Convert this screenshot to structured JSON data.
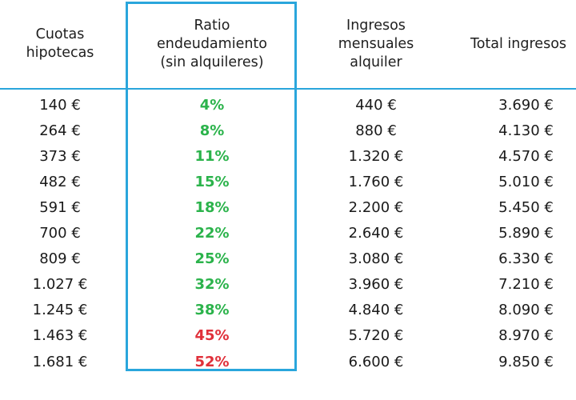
{
  "headers": {
    "cuotas": "Cuotas\nhipotecas",
    "ratio": "Ratio\nendeudamiento\n(sin alquileres)",
    "ingresos_alquiler": "Ingresos\nmensuales\nalquiler",
    "total": "Total ingresos"
  },
  "rows": [
    {
      "cuota": "140 €",
      "ratio": "4%",
      "status": "ok",
      "alquiler": "440 €",
      "total": "3.690 €"
    },
    {
      "cuota": "264 €",
      "ratio": "8%",
      "status": "ok",
      "alquiler": "880 €",
      "total": "4.130 €"
    },
    {
      "cuota": "373 €",
      "ratio": "11%",
      "status": "ok",
      "alquiler": "1.320 €",
      "total": "4.570 €"
    },
    {
      "cuota": "482 €",
      "ratio": "15%",
      "status": "ok",
      "alquiler": "1.760 €",
      "total": "5.010 €"
    },
    {
      "cuota": "591 €",
      "ratio": "18%",
      "status": "ok",
      "alquiler": "2.200 €",
      "total": "5.450 €"
    },
    {
      "cuota": "700 €",
      "ratio": "22%",
      "status": "ok",
      "alquiler": "2.640 €",
      "total": "5.890 €"
    },
    {
      "cuota": "809 €",
      "ratio": "25%",
      "status": "ok",
      "alquiler": "3.080 €",
      "total": "6.330 €"
    },
    {
      "cuota": "1.027 €",
      "ratio": "32%",
      "status": "ok",
      "alquiler": "3.960 €",
      "total": "7.210 €"
    },
    {
      "cuota": "1.245 €",
      "ratio": "38%",
      "status": "ok",
      "alquiler": "4.840 €",
      "total": "8.090 €"
    },
    {
      "cuota": "1.463 €",
      "ratio": "45%",
      "status": "bad",
      "alquiler": "5.720 €",
      "total": "8.970 €"
    },
    {
      "cuota": "1.681 €",
      "ratio": "52%",
      "status": "bad",
      "alquiler": "6.600 €",
      "total": "9.850 €"
    }
  ],
  "colors": {
    "accent_border": "#2aa6dc",
    "ratio_ok": "#2bb34b",
    "ratio_bad": "#e0303a"
  }
}
